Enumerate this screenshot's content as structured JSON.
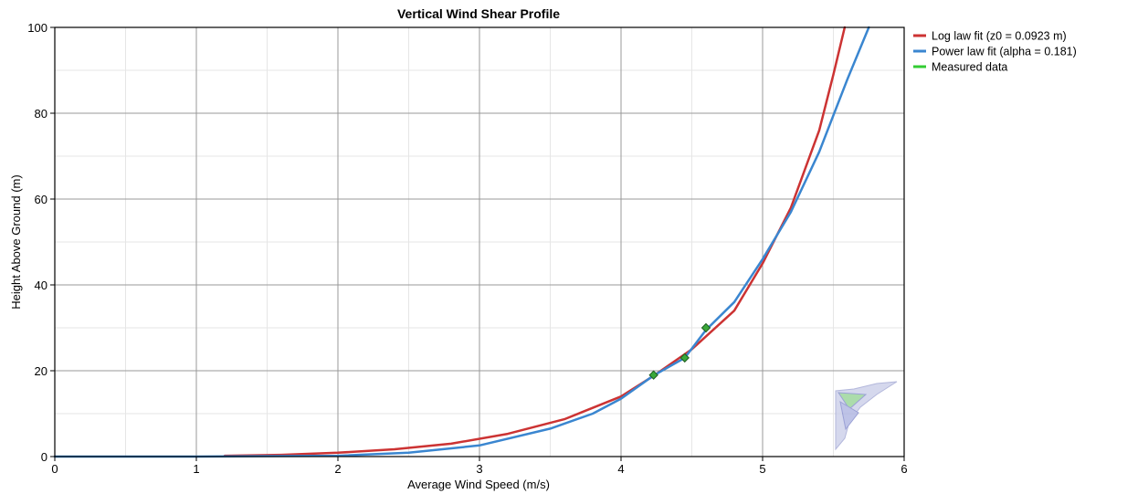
{
  "chart_data": {
    "type": "line",
    "title": "Vertical Wind Shear Profile",
    "xlabel": "Average Wind Speed (m/s)",
    "ylabel": "Height Above Ground (m)",
    "xlim": [
      0,
      6
    ],
    "ylim": [
      0,
      100
    ],
    "x_ticks": [
      0,
      1,
      2,
      3,
      4,
      5,
      6
    ],
    "y_ticks": [
      0,
      20,
      40,
      60,
      80,
      100
    ],
    "grid": true,
    "legend_position": "right",
    "series": [
      {
        "name": "Log law fit (z0 = 0.0923 m)",
        "kind": "line",
        "color": "#cc3333",
        "points": [
          [
            1.2,
            0.2
          ],
          [
            1.6,
            0.4
          ],
          [
            2.0,
            0.9
          ],
          [
            2.4,
            1.7
          ],
          [
            2.8,
            3.0
          ],
          [
            3.2,
            5.3
          ],
          [
            3.6,
            8.7
          ],
          [
            4.0,
            14.0
          ],
          [
            4.22,
            18.6
          ],
          [
            4.5,
            25.0
          ],
          [
            4.8,
            34.0
          ],
          [
            5.0,
            45.0
          ],
          [
            5.2,
            58.0
          ],
          [
            5.4,
            76.0
          ],
          [
            5.5,
            89.0
          ],
          [
            5.58,
            100.0
          ]
        ]
      },
      {
        "name": "Power law fit (alpha = 0.181)",
        "kind": "line",
        "color": "#3a86d0",
        "points": [
          [
            0.0,
            0.0
          ],
          [
            0.5,
            0.0
          ],
          [
            1.0,
            0.0
          ],
          [
            1.5,
            0.1
          ],
          [
            2.0,
            0.2
          ],
          [
            2.5,
            0.9
          ],
          [
            3.0,
            2.6
          ],
          [
            3.5,
            6.5
          ],
          [
            3.8,
            10.0
          ],
          [
            4.0,
            13.5
          ],
          [
            4.23,
            18.9
          ],
          [
            4.45,
            23.0
          ],
          [
            4.6,
            29.5
          ],
          [
            4.8,
            36.0
          ],
          [
            5.0,
            46.0
          ],
          [
            5.2,
            57.0
          ],
          [
            5.4,
            71.0
          ],
          [
            5.6,
            88.0
          ],
          [
            5.75,
            100.0
          ]
        ]
      },
      {
        "name": "Measured data",
        "kind": "markers",
        "color": "#33cc33",
        "marker_color": "#3aa83a",
        "points": [
          [
            4.23,
            19.0
          ],
          [
            4.45,
            23.0
          ],
          [
            4.6,
            30.0
          ]
        ]
      }
    ]
  }
}
